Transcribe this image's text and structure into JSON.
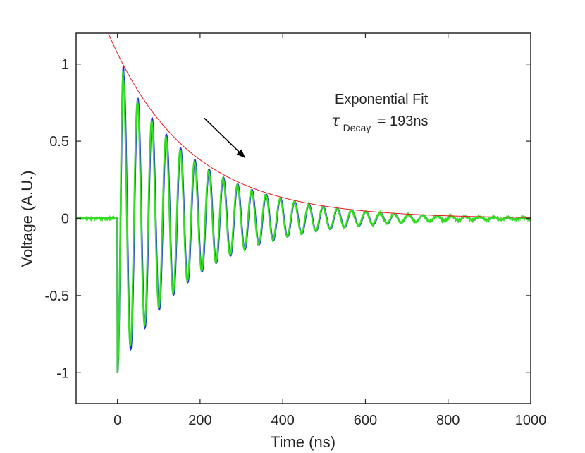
{
  "chart_data": {
    "type": "line",
    "title": "",
    "xlabel": "Time (ns)",
    "ylabel": "Voltage (A.U.)",
    "xlim": [
      -100,
      1000
    ],
    "ylim": [
      -1.2,
      1.2
    ],
    "xticks": [
      0,
      200,
      400,
      600,
      800,
      1000
    ],
    "yticks": [
      -1,
      -0.5,
      0,
      0.5,
      1
    ],
    "xtick_labels": [
      "0",
      "200",
      "400",
      "600",
      "800",
      "1000"
    ],
    "ytick_labels": [
      "-1",
      "-0.5",
      "0",
      "0.5",
      "1"
    ],
    "grid": false,
    "series": [
      {
        "name": "signal (blue)",
        "color": "#1f2fd6",
        "kind": "damped-oscillation",
        "t_start": 0,
        "initial_value": -1.0,
        "amplitude": 1.0,
        "tau_ns": 193,
        "period_ns": 34.5,
        "first_peak_ns": 15,
        "baseline_before_start": 0
      },
      {
        "name": "signal (green)",
        "color": "#33dd22",
        "kind": "damped-oscillation",
        "t_start": 0,
        "initial_value": -1.0,
        "amplitude": 0.97,
        "tau_ns": 193,
        "period_ns": 34.5,
        "first_peak_ns": 14,
        "baseline_before_start": 0
      },
      {
        "name": "Exponential Fit",
        "color": "#e8191d",
        "kind": "exponential-envelope",
        "amplitude_at_zero": 1.07,
        "tau_ns": 193
      }
    ],
    "annotations": [
      {
        "line1": "Exponential Fit",
        "tau_symbol": "τ",
        "tau_subscript": "Decay",
        "tau_value": "= 193ns",
        "arrow_from": [
          210,
          0.65
        ],
        "arrow_to": [
          310,
          0.39
        ]
      }
    ]
  }
}
